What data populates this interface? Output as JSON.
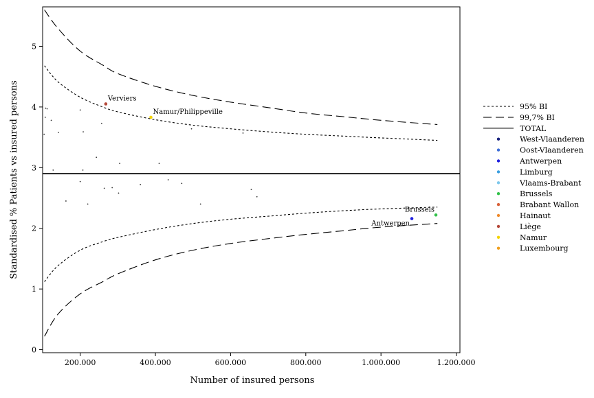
{
  "chart_data": {
    "type": "scatter",
    "title": "",
    "xlabel": "Number of insured persons",
    "ylabel": "Standardised % Patients vs insured persons",
    "xlim": [
      100000,
      1210000
    ],
    "ylim": [
      -0.05,
      5.65
    ],
    "x_ticks": [
      200000,
      400000,
      600000,
      800000,
      1000000,
      1200000
    ],
    "x_tick_labels": [
      "200.000",
      "400.000",
      "600.000",
      "800.000",
      "1.000.000",
      "1.200.000"
    ],
    "y_ticks": [
      0,
      1,
      2,
      3,
      4,
      5
    ],
    "y_tick_labels": [
      "0",
      "1",
      "2",
      "3",
      "4",
      "5"
    ],
    "grid": false,
    "legend_position": "right",
    "total": 2.9,
    "reference_lines": [
      {
        "name": "95% BI",
        "style": "dotted",
        "bound": "upper",
        "points": [
          [
            105000,
            4.68
          ],
          [
            140000,
            4.42
          ],
          [
            200000,
            4.16
          ],
          [
            260000,
            4.0
          ],
          [
            300000,
            3.92
          ],
          [
            400000,
            3.79
          ],
          [
            500000,
            3.7
          ],
          [
            600000,
            3.64
          ],
          [
            700000,
            3.59
          ],
          [
            800000,
            3.55
          ],
          [
            900000,
            3.52
          ],
          [
            1000000,
            3.49
          ],
          [
            1150000,
            3.45
          ]
        ]
      },
      {
        "name": "95% BI",
        "style": "dotted",
        "bound": "lower",
        "points": [
          [
            105000,
            1.12
          ],
          [
            140000,
            1.38
          ],
          [
            200000,
            1.64
          ],
          [
            260000,
            1.78
          ],
          [
            300000,
            1.85
          ],
          [
            400000,
            1.98
          ],
          [
            500000,
            2.08
          ],
          [
            600000,
            2.15
          ],
          [
            700000,
            2.2
          ],
          [
            800000,
            2.25
          ],
          [
            900000,
            2.29
          ],
          [
            1000000,
            2.32
          ],
          [
            1150000,
            2.35
          ]
        ]
      },
      {
        "name": "99,7% BI",
        "style": "dashed",
        "bound": "upper",
        "points": [
          [
            105000,
            5.6
          ],
          [
            140000,
            5.3
          ],
          [
            200000,
            4.92
          ],
          [
            260000,
            4.69
          ],
          [
            300000,
            4.55
          ],
          [
            400000,
            4.34
          ],
          [
            500000,
            4.19
          ],
          [
            600000,
            4.08
          ],
          [
            700000,
            3.99
          ],
          [
            800000,
            3.9
          ],
          [
            900000,
            3.84
          ],
          [
            1000000,
            3.78
          ],
          [
            1150000,
            3.71
          ]
        ]
      },
      {
        "name": "99,7% BI",
        "style": "dashed",
        "bound": "lower",
        "points": [
          [
            105000,
            0.22
          ],
          [
            140000,
            0.58
          ],
          [
            200000,
            0.92
          ],
          [
            260000,
            1.12
          ],
          [
            300000,
            1.25
          ],
          [
            400000,
            1.48
          ],
          [
            500000,
            1.64
          ],
          [
            600000,
            1.75
          ],
          [
            700000,
            1.83
          ],
          [
            800000,
            1.9
          ],
          [
            900000,
            1.96
          ],
          [
            1000000,
            2.02
          ],
          [
            1150000,
            2.08
          ]
        ]
      }
    ],
    "legend": [
      {
        "label": "95% BI",
        "kind": "line",
        "style": "dotted"
      },
      {
        "label": "99,7% BI",
        "kind": "line",
        "style": "dashed"
      },
      {
        "label": "TOTAL",
        "kind": "line",
        "style": "solid"
      },
      {
        "label": "West-Vlaanderen",
        "kind": "marker",
        "color": "#1a237e"
      },
      {
        "label": "Oost-Vlaanderen",
        "kind": "marker",
        "color": "#3f6fd8"
      },
      {
        "label": "Antwerpen",
        "kind": "marker",
        "color": "#1f1fe0"
      },
      {
        "label": "Limburg",
        "kind": "marker",
        "color": "#3a9ee0"
      },
      {
        "label": "Vlaams-Brabant",
        "kind": "marker",
        "color": "#7ec8ec"
      },
      {
        "label": "Brussels",
        "kind": "marker",
        "color": "#33c24a"
      },
      {
        "label": "Brabant Wallon",
        "kind": "marker",
        "color": "#d9623a"
      },
      {
        "label": "Hainaut",
        "kind": "marker",
        "color": "#f08a2a"
      },
      {
        "label": "Liège",
        "kind": "marker",
        "color": "#b5493a"
      },
      {
        "label": "Namur",
        "kind": "marker",
        "color": "#f5d400"
      },
      {
        "label": "Luxembourg",
        "kind": "marker",
        "color": "#f0a020"
      }
    ],
    "points": [
      {
        "x": 108000,
        "y": 3.98
      },
      {
        "x": 112000,
        "y": 3.97
      },
      {
        "x": 107000,
        "y": 3.83
      },
      {
        "x": 123000,
        "y": 3.78
      },
      {
        "x": 104000,
        "y": 3.55
      },
      {
        "x": 142000,
        "y": 3.58
      },
      {
        "x": 128000,
        "y": 2.96
      },
      {
        "x": 200000,
        "y": 3.95
      },
      {
        "x": 208000,
        "y": 3.59
      },
      {
        "x": 257000,
        "y": 3.73
      },
      {
        "x": 207000,
        "y": 2.96
      },
      {
        "x": 243000,
        "y": 3.17
      },
      {
        "x": 305000,
        "y": 3.07
      },
      {
        "x": 410000,
        "y": 3.07
      },
      {
        "x": 496000,
        "y": 3.64
      },
      {
        "x": 633000,
        "y": 3.57
      },
      {
        "x": 200000,
        "y": 2.77
      },
      {
        "x": 264000,
        "y": 2.66
      },
      {
        "x": 285000,
        "y": 2.67
      },
      {
        "x": 302000,
        "y": 2.58
      },
      {
        "x": 360000,
        "y": 2.72
      },
      {
        "x": 434000,
        "y": 2.8
      },
      {
        "x": 470000,
        "y": 2.74
      },
      {
        "x": 655000,
        "y": 2.64
      },
      {
        "x": 670000,
        "y": 2.52
      },
      {
        "x": 162000,
        "y": 2.45
      },
      {
        "x": 220000,
        "y": 2.4
      },
      {
        "x": 520000,
        "y": 2.4
      },
      {
        "x": 268000,
        "y": 4.05,
        "label": "Verviers",
        "color": "#b5493a",
        "label_pos": "upper-right"
      },
      {
        "x": 388000,
        "y": 3.83,
        "label": "Namur/Philippeville",
        "color": "#f5d400",
        "label_pos": "upper-right"
      },
      {
        "x": 1082000,
        "y": 2.16,
        "label": "Antwerpen",
        "color": "#1f1fe0",
        "label_pos": "lower-left"
      },
      {
        "x": 1146000,
        "y": 2.22,
        "label": "Brussels",
        "color": "#33c24a",
        "label_pos": "upper-left"
      }
    ]
  }
}
